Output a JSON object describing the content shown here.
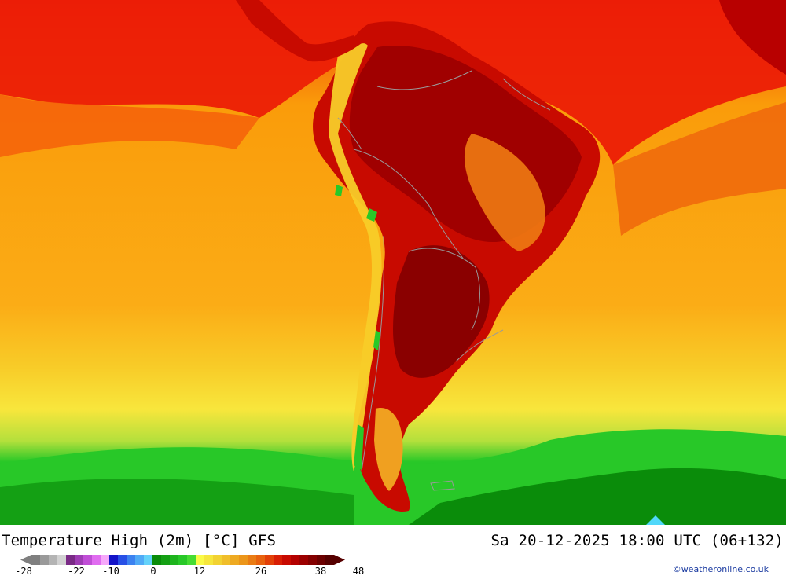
{
  "title": "Temperature High (2m) [°C] GFS",
  "datetime": "Sa 20-12-2025 18:00 UTC (06+132)",
  "copyright": "©weatheronline.co.uk",
  "legend": {
    "ticks": [
      "-28",
      "-22",
      "-10",
      "0",
      "12",
      "26",
      "38",
      "48"
    ],
    "swatches": [
      "#7f7f7f",
      "#9a9a9a",
      "#b4b4b4",
      "#d2d2d2",
      "#7a2a86",
      "#9e3cb4",
      "#c04ed6",
      "#e06cf0",
      "#f6a8fa",
      "#1414c8",
      "#2850e6",
      "#3c82f0",
      "#50aaf6",
      "#64d2fa",
      "#0a8c0a",
      "#14a014",
      "#1eb41e",
      "#28c828",
      "#46dc32",
      "#fafa46",
      "#f6e63c",
      "#f2d232",
      "#f0be2a",
      "#eeaa22",
      "#ec961a",
      "#ea7c14",
      "#e8620e",
      "#e24008",
      "#d81e04",
      "#c80a00",
      "#b40000",
      "#9c0000",
      "#840000",
      "#6c0000",
      "#560000"
    ]
  },
  "map_colors": {
    "ocean_orange": "#fa9c0a",
    "ocean_orange_light": "#fbac16",
    "ocean_red_orange": "#f4600a",
    "ocean_red": "#ec1e06",
    "yellow_band": "#f8dc2e",
    "green_band": "#28c828",
    "dark_green": "#0a8c0a",
    "land_dark_red": "#a00000",
    "land_red": "#c80a00",
    "borders": "#9a9a9a"
  }
}
